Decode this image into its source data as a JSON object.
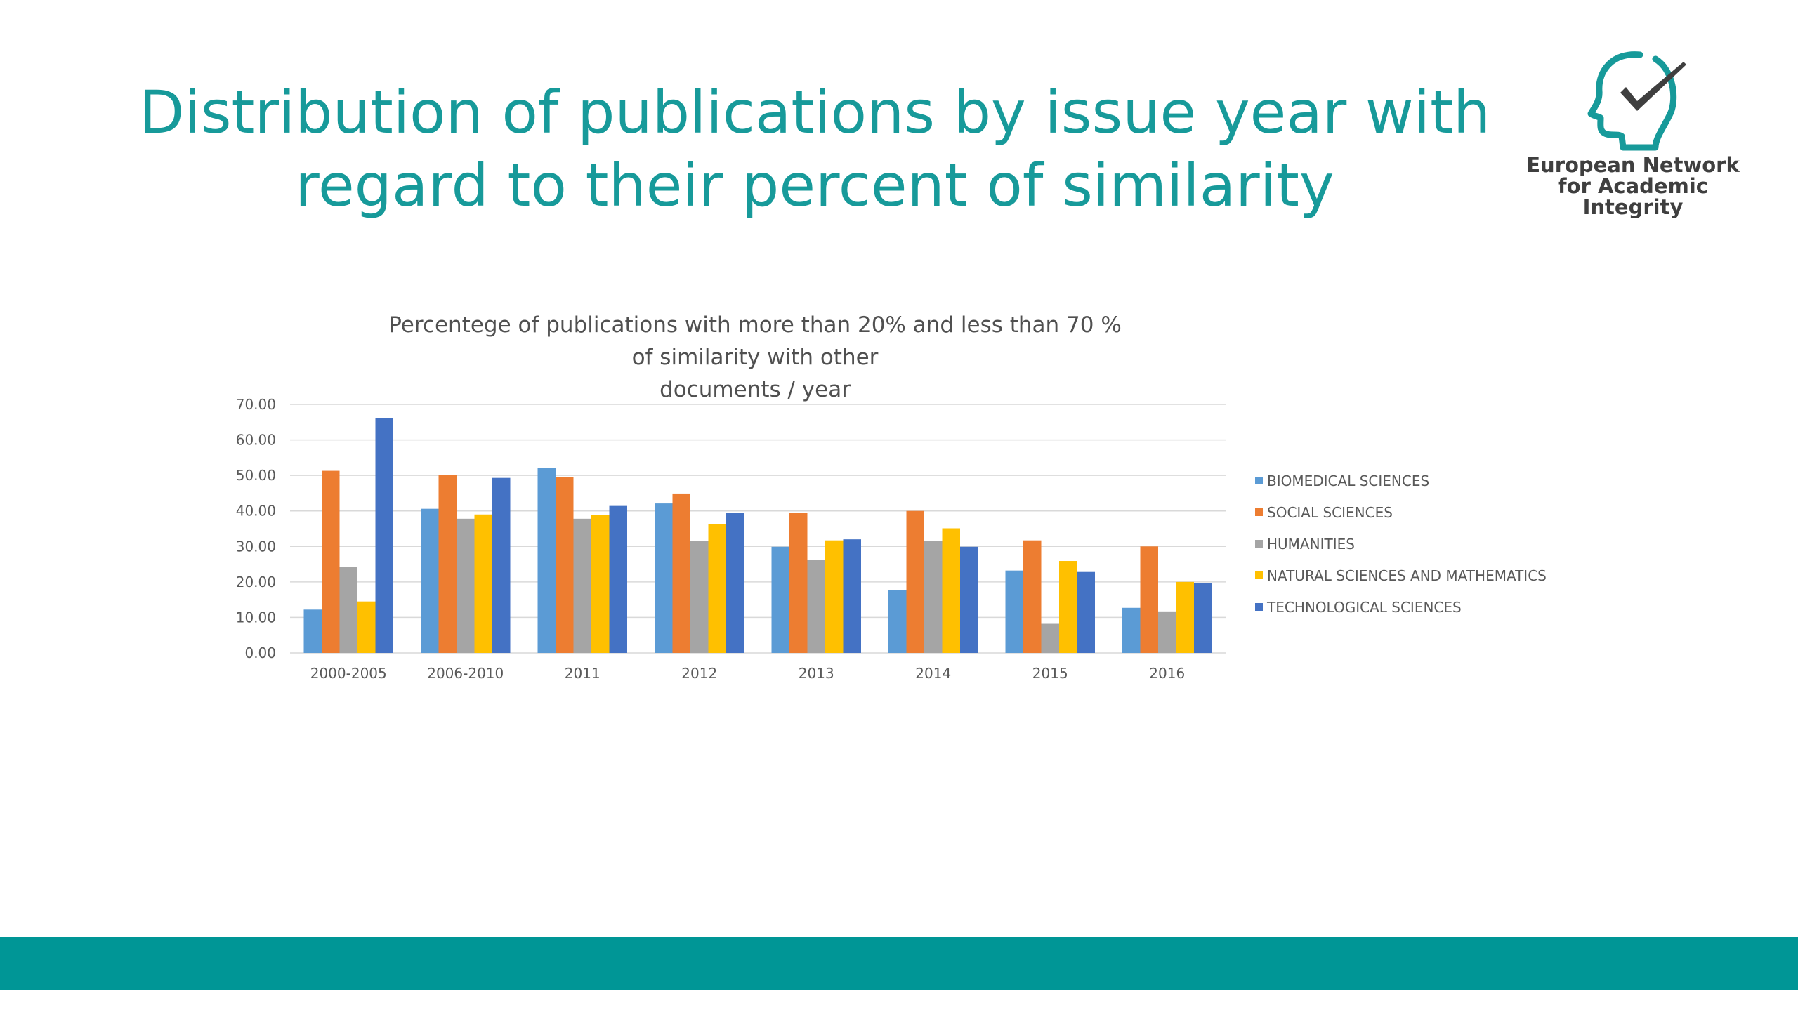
{
  "slide": {
    "title_line1": "Distribution of publications by issue year with",
    "title_line2": "regard to their percent of  similarity",
    "logo": {
      "line1": "European Network",
      "line2": "for Academic",
      "line3": "Integrity"
    },
    "title_color": "#179a9a",
    "footer_color": "#009696"
  },
  "chart_data": {
    "type": "bar",
    "title_line1": "Percentege of publications with more than 20% and less than 70 % of similarity with other",
    "title_line2": "documents / year",
    "categories": [
      "2000-2005",
      "2006-2010",
      "2011",
      "2012",
      "2013",
      "2014",
      "2015",
      "2016"
    ],
    "ylim": [
      0,
      70
    ],
    "yticks": [
      "0.00",
      "10.00",
      "20.00",
      "30.00",
      "40.00",
      "50.00",
      "60.00",
      "70.00"
    ],
    "grid": true,
    "legend_position": "right",
    "series": [
      {
        "name": "BIOMEDICAL SCIENCES",
        "color": "#5b9bd5",
        "values": [
          12.2,
          40.6,
          52.2,
          42.1,
          29.9,
          17.7,
          23.2,
          12.7
        ]
      },
      {
        "name": "SOCIAL SCIENCES",
        "color": "#ed7d31",
        "values": [
          51.3,
          50.1,
          49.6,
          44.9,
          39.5,
          40.0,
          31.7,
          30.0
        ]
      },
      {
        "name": "HUMANITIES",
        "color": "#a5a5a5",
        "values": [
          24.2,
          37.8,
          37.8,
          31.5,
          26.2,
          31.5,
          8.2,
          11.7
        ]
      },
      {
        "name": "NATURAL SCIENCES AND MATHEMATICS",
        "color": "#ffc000",
        "values": [
          14.5,
          39.0,
          38.8,
          36.3,
          31.7,
          35.1,
          25.9,
          20.0
        ]
      },
      {
        "name": "TECHNOLOGICAL SCIENCES",
        "color": "#4472c4",
        "values": [
          66.1,
          49.3,
          41.4,
          39.4,
          32.0,
          29.9,
          22.8,
          19.7
        ]
      }
    ]
  }
}
